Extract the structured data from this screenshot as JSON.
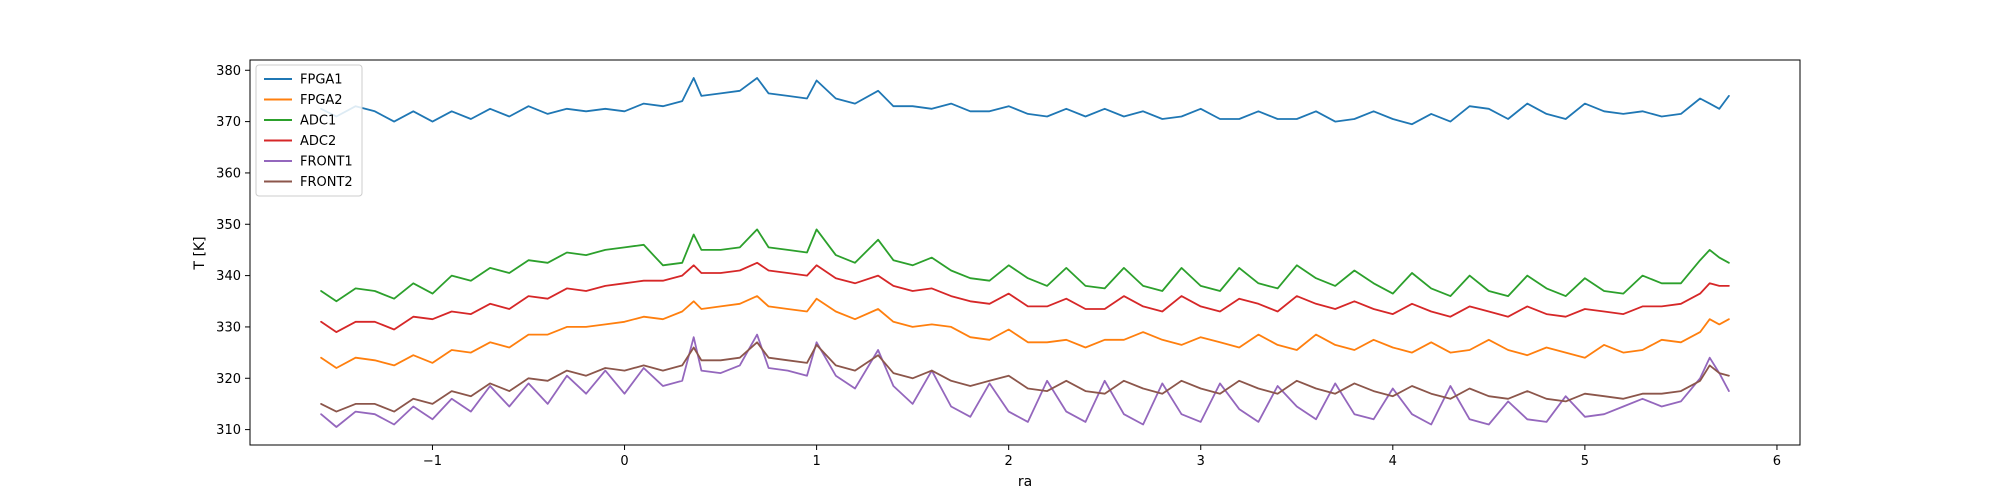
{
  "chart_data": {
    "type": "line",
    "title": "",
    "xlabel": "ra",
    "ylabel": "T [K]",
    "xlim": [
      -1.95,
      6.12
    ],
    "ylim": [
      307,
      382
    ],
    "x_ticks": [
      -1,
      0,
      1,
      2,
      3,
      4,
      5,
      6
    ],
    "x_tick_labels": [
      "−1",
      "0",
      "1",
      "2",
      "3",
      "4",
      "5",
      "6"
    ],
    "y_ticks": [
      310,
      320,
      330,
      340,
      350,
      360,
      370,
      380
    ],
    "y_tick_labels": [
      "310",
      "320",
      "330",
      "340",
      "350",
      "360",
      "370",
      "380"
    ],
    "grid": false,
    "legend_position": "top-left",
    "x": [
      -1.58,
      -1.5,
      -1.4,
      -1.3,
      -1.2,
      -1.1,
      -1.0,
      -0.9,
      -0.8,
      -0.7,
      -0.6,
      -0.5,
      -0.4,
      -0.3,
      -0.2,
      -0.1,
      0.0,
      0.1,
      0.2,
      0.3,
      0.36,
      0.4,
      0.5,
      0.6,
      0.69,
      0.75,
      0.85,
      0.95,
      1.0,
      1.1,
      1.2,
      1.32,
      1.4,
      1.5,
      1.6,
      1.7,
      1.8,
      1.9,
      2.0,
      2.1,
      2.2,
      2.3,
      2.4,
      2.5,
      2.6,
      2.7,
      2.8,
      2.9,
      3.0,
      3.1,
      3.2,
      3.3,
      3.4,
      3.5,
      3.6,
      3.7,
      3.8,
      3.9,
      4.0,
      4.1,
      4.2,
      4.3,
      4.4,
      4.5,
      4.6,
      4.7,
      4.8,
      4.9,
      5.0,
      5.1,
      5.2,
      5.3,
      5.4,
      5.5,
      5.6,
      5.65,
      5.7,
      5.75
    ],
    "series": [
      {
        "name": "FPGA1",
        "color": "#1f77b4",
        "values": [
          372.5,
          371.0,
          373.0,
          372.0,
          370.0,
          372.0,
          370.0,
          372.0,
          370.5,
          372.5,
          371.0,
          373.0,
          371.5,
          372.5,
          372.0,
          372.5,
          372.0,
          373.5,
          373.0,
          374.0,
          378.5,
          375.0,
          375.5,
          376.0,
          378.5,
          375.5,
          375.0,
          374.5,
          378.0,
          374.5,
          373.5,
          376.0,
          373.0,
          373.0,
          372.5,
          373.5,
          372.0,
          372.0,
          373.0,
          371.5,
          371.0,
          372.5,
          371.0,
          372.5,
          371.0,
          372.0,
          370.5,
          371.0,
          372.5,
          370.5,
          370.5,
          372.0,
          370.5,
          370.5,
          372.0,
          370.0,
          370.5,
          372.0,
          370.5,
          369.5,
          371.5,
          370.0,
          373.0,
          372.5,
          370.5,
          373.5,
          371.5,
          370.5,
          373.5,
          372.0,
          371.5,
          372.0,
          371.0,
          371.5,
          374.5,
          373.5,
          372.5,
          375.0
        ]
      },
      {
        "name": "FPGA2",
        "color": "#ff7f0e",
        "values": [
          324.0,
          322.0,
          324.0,
          323.5,
          322.5,
          324.5,
          323.0,
          325.5,
          325.0,
          327.0,
          326.0,
          328.5,
          328.5,
          330.0,
          330.0,
          330.5,
          331.0,
          332.0,
          331.5,
          333.0,
          335.0,
          333.5,
          334.0,
          334.5,
          336.0,
          334.0,
          333.5,
          333.0,
          335.5,
          333.0,
          331.5,
          333.5,
          331.0,
          330.0,
          330.5,
          330.0,
          328.0,
          327.5,
          329.5,
          327.0,
          327.0,
          327.5,
          326.0,
          327.5,
          327.5,
          329.0,
          327.5,
          326.5,
          328.0,
          327.0,
          326.0,
          328.5,
          326.5,
          325.5,
          328.5,
          326.5,
          325.5,
          327.5,
          326.0,
          325.0,
          327.0,
          325.0,
          325.5,
          327.5,
          325.5,
          324.5,
          326.0,
          325.0,
          324.0,
          326.5,
          325.0,
          325.5,
          327.5,
          327.0,
          329.0,
          331.5,
          330.5,
          331.5
        ]
      },
      {
        "name": "ADC1",
        "color": "#2ca02c",
        "values": [
          337.0,
          335.0,
          337.5,
          337.0,
          335.5,
          338.5,
          336.5,
          340.0,
          339.0,
          341.5,
          340.5,
          343.0,
          342.5,
          344.5,
          344.0,
          345.0,
          345.5,
          346.0,
          342.0,
          342.5,
          348.0,
          345.0,
          345.0,
          345.5,
          349.0,
          345.5,
          345.0,
          344.5,
          349.0,
          344.0,
          342.5,
          347.0,
          343.0,
          342.0,
          343.5,
          341.0,
          339.5,
          339.0,
          342.0,
          339.5,
          338.0,
          341.5,
          338.0,
          337.5,
          341.5,
          338.0,
          337.0,
          341.5,
          338.0,
          337.0,
          341.5,
          338.5,
          337.5,
          342.0,
          339.5,
          338.0,
          341.0,
          338.5,
          336.5,
          340.5,
          337.5,
          336.0,
          340.0,
          337.0,
          336.0,
          340.0,
          337.5,
          336.0,
          339.5,
          337.0,
          336.5,
          340.0,
          338.5,
          338.5,
          343.0,
          345.0,
          343.5,
          342.5
        ]
      },
      {
        "name": "ADC2",
        "color": "#d62728",
        "values": [
          331.0,
          329.0,
          331.0,
          331.0,
          329.5,
          332.0,
          331.5,
          333.0,
          332.5,
          334.5,
          333.5,
          336.0,
          335.5,
          337.5,
          337.0,
          338.0,
          338.5,
          339.0,
          339.0,
          340.0,
          342.0,
          340.5,
          340.5,
          341.0,
          342.5,
          341.0,
          340.5,
          340.0,
          342.0,
          339.5,
          338.5,
          340.0,
          338.0,
          337.0,
          337.5,
          336.0,
          335.0,
          334.5,
          336.5,
          334.0,
          334.0,
          335.5,
          333.5,
          333.5,
          336.0,
          334.0,
          333.0,
          336.0,
          334.0,
          333.0,
          335.5,
          334.5,
          333.0,
          336.0,
          334.5,
          333.5,
          335.0,
          333.5,
          332.5,
          334.5,
          333.0,
          332.0,
          334.0,
          333.0,
          332.0,
          334.0,
          332.5,
          332.0,
          333.5,
          333.0,
          332.5,
          334.0,
          334.0,
          334.5,
          336.5,
          338.5,
          338.0,
          338.0
        ]
      },
      {
        "name": "FRONT1",
        "color": "#9467bd",
        "values": [
          313.0,
          310.5,
          313.5,
          313.0,
          311.0,
          314.5,
          312.0,
          316.0,
          313.5,
          318.5,
          314.5,
          319.0,
          315.0,
          320.5,
          317.0,
          321.5,
          317.0,
          322.0,
          318.5,
          319.5,
          328.0,
          321.5,
          321.0,
          322.5,
          328.5,
          322.0,
          321.5,
          320.5,
          327.0,
          320.5,
          318.0,
          325.5,
          318.5,
          315.0,
          321.5,
          314.5,
          312.5,
          319.0,
          313.5,
          311.5,
          319.5,
          313.5,
          311.5,
          319.5,
          313.0,
          311.0,
          319.0,
          313.0,
          311.5,
          319.0,
          314.0,
          311.5,
          318.5,
          314.5,
          312.0,
          319.0,
          313.0,
          312.0,
          318.0,
          313.0,
          311.0,
          318.5,
          312.0,
          311.0,
          315.5,
          312.0,
          311.5,
          316.5,
          312.5,
          313.0,
          314.5,
          316.0,
          314.5,
          315.5,
          320.0,
          324.0,
          321.0,
          317.5
        ]
      },
      {
        "name": "FRONT2",
        "color": "#8c564b",
        "values": [
          315.0,
          313.5,
          315.0,
          315.0,
          313.5,
          316.0,
          315.0,
          317.5,
          316.5,
          319.0,
          317.5,
          320.0,
          319.5,
          321.5,
          320.5,
          322.0,
          321.5,
          322.5,
          321.5,
          322.5,
          326.0,
          323.5,
          323.5,
          324.0,
          327.0,
          324.0,
          323.5,
          323.0,
          326.5,
          322.5,
          321.5,
          324.5,
          321.0,
          320.0,
          321.5,
          319.5,
          318.5,
          319.5,
          320.5,
          318.0,
          317.5,
          319.5,
          317.5,
          317.0,
          319.5,
          318.0,
          317.0,
          319.5,
          318.0,
          317.0,
          319.5,
          318.0,
          317.0,
          319.5,
          318.0,
          317.0,
          319.0,
          317.5,
          316.5,
          318.5,
          317.0,
          316.0,
          318.0,
          316.5,
          316.0,
          317.5,
          316.0,
          315.5,
          317.0,
          316.5,
          316.0,
          317.0,
          317.0,
          317.5,
          319.5,
          322.5,
          321.0,
          320.5
        ]
      }
    ]
  }
}
